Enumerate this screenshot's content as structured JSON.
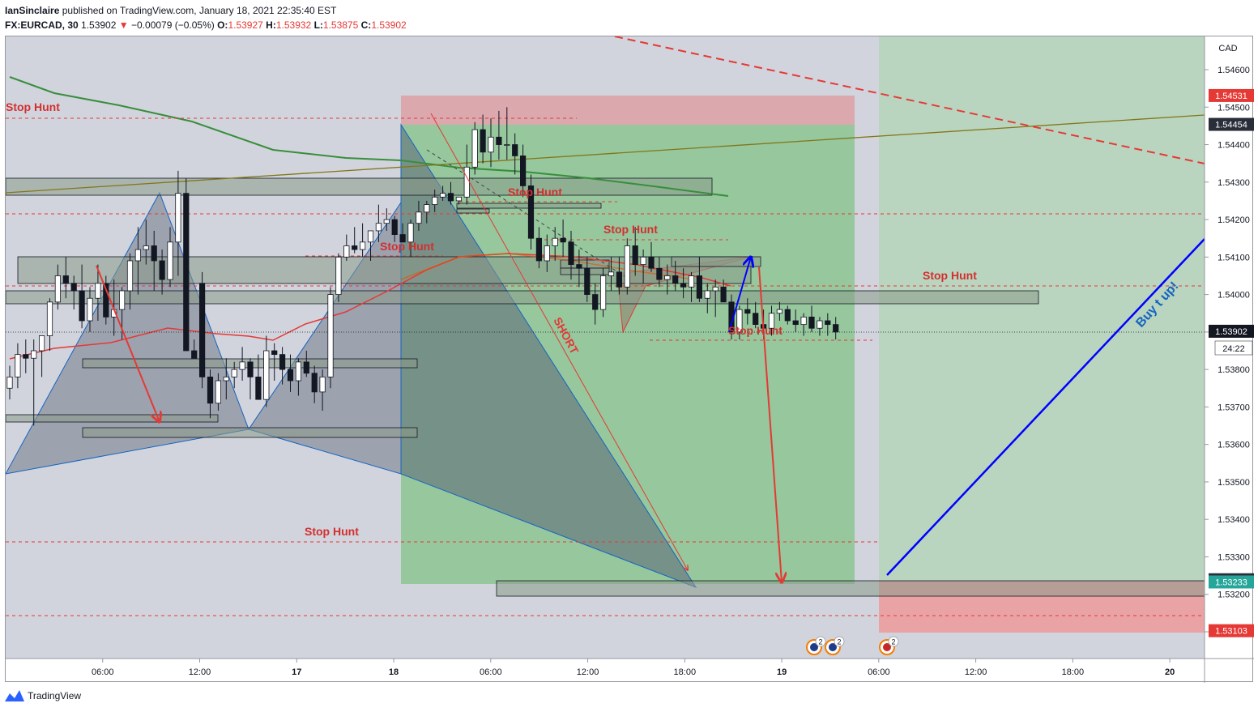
{
  "header": {
    "author": "IanSinclaire",
    "published_text": "published on TradingView.com, January 18, 2021 22:35:40 EST",
    "symbol": "FX:EURCAD, 30",
    "last": "1.53902",
    "change": "−0.00079 (−0.05%)",
    "o_label": "O:",
    "o_value": "1.53927",
    "h_label": "H:",
    "h_value": "1.53932",
    "l_label": "L:",
    "l_value": "1.53875",
    "c_label": "C:",
    "c_value": "1.53902"
  },
  "colors": {
    "up": "#ffffff",
    "down": "#131722",
    "stop": "#e53935",
    "green_zone": "#4caf50",
    "red_zone": "#ef9a9a",
    "ma_green": "#2e7d32",
    "ma_red": "#e53935",
    "blue": "#0000ff"
  },
  "axis": {
    "currency": "CAD",
    "time_remaining": "24:22"
  },
  "annotations": {
    "stop_hunt": "Stop Hunt",
    "short": "SHORT",
    "buy": "Buy t up!"
  },
  "events": [
    {
      "label": "2"
    },
    {
      "label": "2"
    },
    {
      "label": "2"
    }
  ],
  "footer": {
    "brand": "TradingView"
  },
  "chart_data": {
    "type": "candlestick",
    "symbol": "FX:EURCAD",
    "interval": "30",
    "ylim": [
      1.53,
      1.547
    ],
    "y_ticks": [
      1.546,
      1.545,
      1.544,
      1.543,
      1.542,
      1.541,
      1.54,
      1.539,
      1.538,
      1.537,
      1.536,
      1.535,
      1.534,
      1.533,
      1.532,
      1.531
    ],
    "y_tick_labels": [
      "1.54600",
      "1.54500",
      "1.54400",
      "1.54300",
      "1.54200",
      "1.54100",
      "1.54000",
      "1.53900",
      "1.53800",
      "1.53700",
      "1.53600",
      "1.53500",
      "1.53400",
      "1.53300",
      "1.53200",
      "1.53100"
    ],
    "x_ticks": [
      {
        "label": "06:00",
        "bar": 12
      },
      {
        "label": "12:00",
        "bar": 24
      },
      {
        "label": "17",
        "bar": 36
      },
      {
        "label": "18",
        "bar": 48
      },
      {
        "label": "06:00",
        "bar": 60
      },
      {
        "label": "12:00",
        "bar": 72
      },
      {
        "label": "18:00",
        "bar": 84
      },
      {
        "label": "19",
        "bar": 96
      },
      {
        "label": "06:00",
        "bar": 108
      },
      {
        "label": "12:00",
        "bar": 120
      },
      {
        "label": "18:00",
        "bar": 132
      },
      {
        "label": "20",
        "bar": 144
      }
    ],
    "price_tags": [
      {
        "value": 1.54531,
        "label": "1.54531",
        "color": "#e53935"
      },
      {
        "value": 1.54454,
        "label": "1.54454",
        "color": "#2a2e39"
      },
      {
        "value": 1.53902,
        "label": "1.53902",
        "color": "#131722"
      },
      {
        "value": 1.53239,
        "label": "1.53239",
        "color": "#2a2e39"
      },
      {
        "value": 1.53233,
        "label": "1.53233",
        "color": "#26a69a"
      },
      {
        "value": 1.53103,
        "label": "1.53103",
        "color": "#e53935"
      }
    ],
    "candles": [
      [
        1.5375,
        1.5381,
        1.5372,
        1.5378
      ],
      [
        1.5378,
        1.5387,
        1.5375,
        1.5384
      ],
      [
        1.5384,
        1.5388,
        1.5379,
        1.5383
      ],
      [
        1.5383,
        1.5388,
        1.5365,
        1.5385
      ],
      [
        1.5385,
        1.5389,
        1.5378,
        1.5389
      ],
      [
        1.5389,
        1.5399,
        1.5385,
        1.5398
      ],
      [
        1.5398,
        1.5408,
        1.5396,
        1.5405
      ],
      [
        1.5405,
        1.541,
        1.5399,
        1.5403
      ],
      [
        1.5403,
        1.5405,
        1.5396,
        1.5401
      ],
      [
        1.5401,
        1.5408,
        1.5391,
        1.5393
      ],
      [
        1.5393,
        1.5402,
        1.539,
        1.5399
      ],
      [
        1.5399,
        1.5408,
        1.5393,
        1.5403
      ],
      [
        1.5403,
        1.5405,
        1.5392,
        1.5394
      ],
      [
        1.5394,
        1.5404,
        1.5389,
        1.5396
      ],
      [
        1.5396,
        1.5402,
        1.5388,
        1.5401
      ],
      [
        1.5401,
        1.5411,
        1.5396,
        1.5409
      ],
      [
        1.5409,
        1.5418,
        1.54,
        1.5412
      ],
      [
        1.5412,
        1.542,
        1.5408,
        1.5413
      ],
      [
        1.5413,
        1.5417,
        1.5401,
        1.5409
      ],
      [
        1.5409,
        1.5412,
        1.54,
        1.5404
      ],
      [
        1.5404,
        1.5418,
        1.5402,
        1.5414
      ],
      [
        1.5414,
        1.5433,
        1.5405,
        1.5427
      ],
      [
        1.5427,
        1.5431,
        1.5385,
        1.5385
      ],
      [
        1.5385,
        1.5388,
        1.5383,
        1.5383
      ],
      [
        1.5403,
        1.5406,
        1.5375,
        1.5378
      ],
      [
        1.5378,
        1.538,
        1.5367,
        1.5371
      ],
      [
        1.5371,
        1.5379,
        1.5369,
        1.5377
      ],
      [
        1.5377,
        1.5383,
        1.5372,
        1.5378
      ],
      [
        1.5378,
        1.5382,
        1.5375,
        1.538
      ],
      [
        1.538,
        1.5386,
        1.5377,
        1.5382
      ],
      [
        1.5382,
        1.5383,
        1.5372,
        1.5378
      ],
      [
        1.5378,
        1.5384,
        1.5373,
        1.5372
      ],
      [
        1.5372,
        1.5389,
        1.537,
        1.5385
      ],
      [
        1.5385,
        1.5387,
        1.5377,
        1.5384
      ],
      [
        1.5384,
        1.5386,
        1.5376,
        1.538
      ],
      [
        1.538,
        1.5384,
        1.5374,
        1.5377
      ],
      [
        1.5377,
        1.5383,
        1.5373,
        1.5382
      ],
      [
        1.5382,
        1.5385,
        1.5378,
        1.5379
      ],
      [
        1.5379,
        1.5381,
        1.5371,
        1.5374
      ],
      [
        1.5374,
        1.538,
        1.5369,
        1.5378
      ],
      [
        1.5378,
        1.5402,
        1.5375,
        1.54
      ],
      [
        1.54,
        1.5411,
        1.5398,
        1.541
      ],
      [
        1.541,
        1.5416,
        1.5409,
        1.5413
      ],
      [
        1.5413,
        1.5418,
        1.5411,
        1.5412
      ],
      [
        1.5412,
        1.5419,
        1.541,
        1.5414
      ],
      [
        1.5414,
        1.5417,
        1.5409,
        1.5417
      ],
      [
        1.5417,
        1.5424,
        1.5414,
        1.5419
      ],
      [
        1.5419,
        1.5423,
        1.5417,
        1.542
      ],
      [
        1.542,
        1.5421,
        1.5414,
        1.5416
      ],
      [
        1.5416,
        1.5419,
        1.5414,
        1.5414
      ],
      [
        1.5414,
        1.542,
        1.541,
        1.5419
      ],
      [
        1.5419,
        1.5425,
        1.5417,
        1.5422
      ],
      [
        1.5422,
        1.5425,
        1.5419,
        1.5424
      ],
      [
        1.5424,
        1.5428,
        1.5422,
        1.5426
      ],
      [
        1.5426,
        1.5429,
        1.5425,
        1.5427
      ],
      [
        1.5427,
        1.543,
        1.5424,
        1.5425
      ],
      [
        1.5425,
        1.5426,
        1.5424,
        1.5426
      ],
      [
        1.5426,
        1.544,
        1.5424,
        1.5434
      ],
      [
        1.5434,
        1.5446,
        1.5432,
        1.5444
      ],
      [
        1.5444,
        1.5448,
        1.5435,
        1.5438
      ],
      [
        1.5438,
        1.5447,
        1.5434,
        1.5442
      ],
      [
        1.5442,
        1.5449,
        1.5436,
        1.544
      ],
      [
        1.544,
        1.545,
        1.5436,
        1.544
      ],
      [
        1.544,
        1.5443,
        1.5432,
        1.5437
      ],
      [
        1.5437,
        1.544,
        1.5426,
        1.5429
      ],
      [
        1.5429,
        1.5432,
        1.5412,
        1.5415
      ],
      [
        1.5415,
        1.5418,
        1.5407,
        1.5409
      ],
      [
        1.5409,
        1.5416,
        1.5406,
        1.5413
      ],
      [
        1.5413,
        1.5418,
        1.5409,
        1.5415
      ],
      [
        1.5415,
        1.542,
        1.541,
        1.5414
      ],
      [
        1.5414,
        1.5417,
        1.5404,
        1.5408
      ],
      [
        1.5408,
        1.5412,
        1.5402,
        1.5407
      ],
      [
        1.5407,
        1.541,
        1.5398,
        1.54
      ],
      [
        1.54,
        1.5403,
        1.5392,
        1.5396
      ],
      [
        1.5396,
        1.5407,
        1.5394,
        1.5405
      ],
      [
        1.5405,
        1.541,
        1.5401,
        1.5406
      ],
      [
        1.5406,
        1.541,
        1.54,
        1.5402
      ],
      [
        1.5402,
        1.5415,
        1.54,
        1.5413
      ],
      [
        1.5413,
        1.5418,
        1.5405,
        1.5408
      ],
      [
        1.5408,
        1.5412,
        1.5403,
        1.541
      ],
      [
        1.541,
        1.5414,
        1.5406,
        1.5407
      ],
      [
        1.5407,
        1.541,
        1.5402,
        1.5404
      ],
      [
        1.5404,
        1.5408,
        1.54,
        1.5405
      ],
      [
        1.5405,
        1.5409,
        1.5401,
        1.5403
      ],
      [
        1.5403,
        1.5407,
        1.5399,
        1.5402
      ],
      [
        1.5402,
        1.5406,
        1.5398,
        1.5405
      ],
      [
        1.5405,
        1.541,
        1.5398,
        1.5399
      ],
      [
        1.5399,
        1.5403,
        1.5395,
        1.5401
      ],
      [
        1.5401,
        1.5404,
        1.5394,
        1.5402
      ],
      [
        1.5402,
        1.5404,
        1.5398,
        1.5398
      ],
      [
        1.5398,
        1.54,
        1.5388,
        1.539
      ],
      [
        1.539,
        1.5397,
        1.5388,
        1.5396
      ],
      [
        1.5396,
        1.5399,
        1.5392,
        1.5395
      ],
      [
        1.5395,
        1.5398,
        1.5391,
        1.5392
      ],
      [
        1.5392,
        1.5396,
        1.5388,
        1.5391
      ],
      [
        1.5391,
        1.5397,
        1.5389,
        1.5395
      ],
      [
        1.5395,
        1.5398,
        1.5393,
        1.5396
      ],
      [
        1.5396,
        1.5397,
        1.5392,
        1.5393
      ],
      [
        1.5393,
        1.5396,
        1.539,
        1.5392
      ],
      [
        1.5392,
        1.5395,
        1.5389,
        1.5394
      ],
      [
        1.5394,
        1.5397,
        1.539,
        1.5391
      ],
      [
        1.5391,
        1.5394,
        1.5389,
        1.5393
      ],
      [
        1.5393,
        1.5395,
        1.5389,
        1.5392
      ],
      [
        1.5392,
        1.5394,
        1.5388,
        1.539
      ]
    ]
  }
}
